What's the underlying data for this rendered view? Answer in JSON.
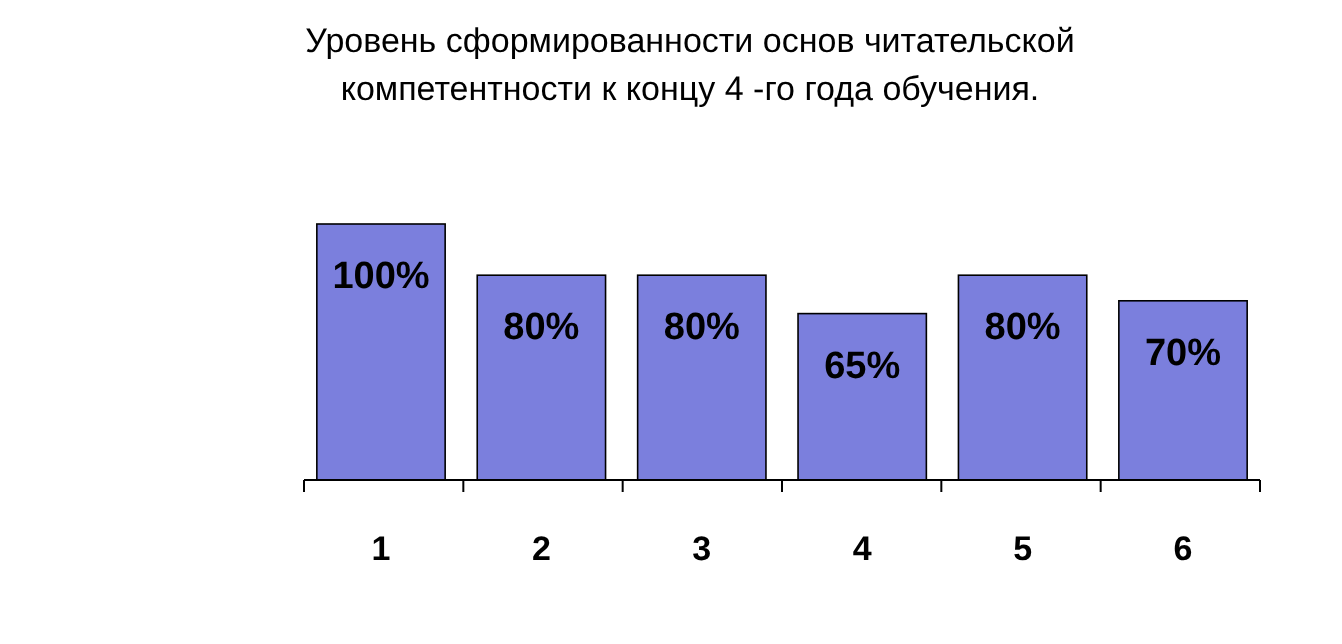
{
  "chart_data": {
    "type": "bar",
    "title": "Уровень сформированности основ читательской\nкомпетентности к концу 4 -го года обучения.",
    "categories": [
      "1",
      "2",
      "3",
      "4",
      "5",
      "6"
    ],
    "values": [
      100,
      80,
      80,
      65,
      80,
      70
    ],
    "value_labels": [
      "100%",
      "80%",
      "80%",
      "65%",
      "80%",
      "70%"
    ],
    "color": "#7b7fdd"
  }
}
